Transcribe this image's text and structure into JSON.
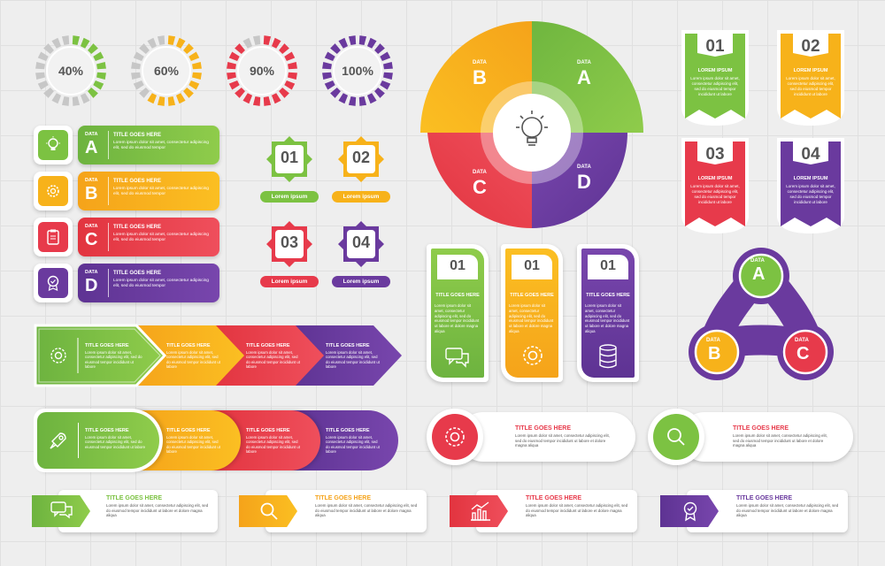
{
  "colors": {
    "green": "#7cc242",
    "yellow": "#f7b21a",
    "red": "#e73a4b",
    "purple": "#6a3a9e",
    "orange": "#f49a1c"
  },
  "progress": [
    {
      "label": "40%",
      "value": 0.4,
      "color": "#7cc242"
    },
    {
      "label": "60%",
      "value": 0.6,
      "color": "#f7b21a"
    },
    {
      "label": "90%",
      "value": 0.9,
      "color": "#e73a4b"
    },
    {
      "label": "100%",
      "value": 1.0,
      "color": "#6a3a9e"
    }
  ],
  "data_rows": [
    {
      "data": "DATA",
      "letter": "A",
      "title": "TITLE GOES HERE",
      "body": "Lorem ipsum dolor sit amet, consectetur adipiscing elit, sed do eiusmod tempor",
      "icon": "lightbulb-icon"
    },
    {
      "data": "DATA",
      "letter": "B",
      "title": "TITLE GOES HERE",
      "body": "Lorem ipsum dolor sit amet, consectetur adipiscing elit, sed do eiusmod tempor",
      "icon": "gear-icon"
    },
    {
      "data": "DATA",
      "letter": "C",
      "title": "TITLE GOES HERE",
      "body": "Lorem ipsum dolor sit amet, consectetur adipiscing elit, sed do eiusmod tempor",
      "icon": "clipboard-icon"
    },
    {
      "data": "DATA",
      "letter": "D",
      "title": "TITLE GOES HERE",
      "body": "Lorem ipsum dolor sit amet, consectetur adipiscing elit, sed do eiusmod tempor",
      "icon": "badge-icon"
    }
  ],
  "number_badges": [
    {
      "num": "01",
      "label": "Lorem ipsum"
    },
    {
      "num": "02",
      "label": "Lorem ipsum"
    },
    {
      "num": "03",
      "label": "Lorem ipsum"
    },
    {
      "num": "04",
      "label": "Lorem ipsum"
    }
  ],
  "circle_chart": [
    {
      "data": "DATA",
      "letter": "A"
    },
    {
      "data": "DATA",
      "letter": "B"
    },
    {
      "data": "DATA",
      "letter": "C"
    },
    {
      "data": "DATA",
      "letter": "D"
    }
  ],
  "shields": [
    {
      "num": "01",
      "title": "LOREM IPSUM",
      "body": "Lorem ipsum dolor sit amet, consectetur adipiscing elit, sed do eiusmod tempor incididunt ut labore"
    },
    {
      "num": "02",
      "title": "LOREM IPSUM",
      "body": "Lorem ipsum dolor sit amet, consectetur adipiscing elit, sed do eiusmod tempor incididunt ut labore"
    },
    {
      "num": "03",
      "title": "LOREM IPSUM",
      "body": "Lorem ipsum dolor sit amet, consectetur adipiscing elit, sed do eiusmod tempor incididunt ut labore"
    },
    {
      "num": "04",
      "title": "LOREM IPSUM",
      "body": "Lorem ipsum dolor sit amet, consectetur adipiscing elit, sed do eiusmod tempor incididunt ut labore"
    }
  ],
  "arrows": {
    "items": [
      {
        "title": "TITLE GOES HERE",
        "body": "Lorem ipsum dolor sit amet, consectetur adipiscing elit, sed do eiusmod tempor incididunt ut labore"
      },
      {
        "title": "TITLE GOES HERE",
        "body": "Lorem ipsum dolor sit amet, consectetur adipiscing elit, sed do eiusmod tempor incididunt ut labore"
      },
      {
        "title": "TITLE GOES HERE",
        "body": "Lorem ipsum dolor sit amet, consectetur adipiscing elit, sed do eiusmod tempor incididunt ut labore"
      },
      {
        "title": "TITLE GOES HERE",
        "body": "Lorem ipsum dolor sit amet, consectetur adipiscing elit, sed do eiusmod tempor incididunt ut labore"
      }
    ]
  },
  "pills": {
    "items": [
      {
        "title": "TITLE GOES HERE",
        "body": "Lorem ipsum dolor sit amet, consectetur adipiscing elit, sed do eiusmod tempor incididunt ut labore"
      },
      {
        "title": "TITLE GOES HERE",
        "body": "Lorem ipsum dolor sit amet, consectetur adipiscing elit, sed do eiusmod tempor incididunt ut labore"
      },
      {
        "title": "TITLE GOES HERE",
        "body": "Lorem ipsum dolor sit amet, consectetur adipiscing elit, sed do eiusmod tempor incididunt ut labore"
      },
      {
        "title": "TITLE GOES HERE",
        "body": "Lorem ipsum dolor sit amet, consectetur adipiscing elit, sed do eiusmod tempor incididunt ut labore"
      }
    ]
  },
  "tall_cards": [
    {
      "num": "01",
      "title": "TITLE GOES HERE",
      "body": "Lorem ipsum dolor sit amet, consectetur adipiscing elit, sed do eiusmod tempor incididunt ut labore et dolore magna aliqua",
      "icon": "chat-icon"
    },
    {
      "num": "01",
      "title": "TITLE GOES HERE",
      "body": "Lorem ipsum dolor sit amet, consectetur adipiscing elit, sed do eiusmod tempor incididunt ut labore et dolore magna aliqua",
      "icon": "gear-icon"
    },
    {
      "num": "01",
      "title": "TITLE GOES HERE",
      "body": "Lorem ipsum dolor sit amet, consectetur adipiscing elit, sed do eiusmod tempor incididunt ut labore et dolore magna aliqua",
      "icon": "database-icon"
    }
  ],
  "triad": [
    {
      "data": "DATA",
      "letter": "A"
    },
    {
      "data": "DATA",
      "letter": "B"
    },
    {
      "data": "DATA",
      "letter": "C"
    }
  ],
  "circle_callouts": [
    {
      "title": "TITLE GOES HERE",
      "body": "Lorem ipsum dolor sit amet, consectetur adipiscing elit, sed do eiusmod tempor incididunt ut labore et dolore magna aliqua",
      "icon": "gear-icon"
    },
    {
      "title": "TITLE GOES HERE",
      "body": "Lorem ipsum dolor sit amet, consectetur adipiscing elit, sed do eiusmod tempor incididunt ut labore et dolore magna aliqua",
      "icon": "search-icon"
    }
  ],
  "banners": [
    {
      "title": "TITLE GOES HERE",
      "body": "Lorem ipsum dolor sit amet, consectetur adipiscing elit, sed do eiusmod tempor incididunt ut labore et dolore magna aliqua",
      "icon": "chat-icon"
    },
    {
      "title": "TITLE GOES HERE",
      "body": "Lorem ipsum dolor sit amet, consectetur adipiscing elit, sed do eiusmod tempor incididunt ut labore et dolore magna aliqua",
      "icon": "search-icon"
    },
    {
      "title": "TITLE GOES HERE",
      "body": "Lorem ipsum dolor sit amet, consectetur adipiscing elit, sed do eiusmod tempor incididunt ut labore et dolore magna aliqua",
      "icon": "chart-icon"
    },
    {
      "title": "TITLE GOES HERE",
      "body": "Lorem ipsum dolor sit amet, consectetur adipiscing elit, sed do eiusmod tempor incididunt ut labore et dolore magna aliqua",
      "icon": "badge-icon"
    }
  ]
}
